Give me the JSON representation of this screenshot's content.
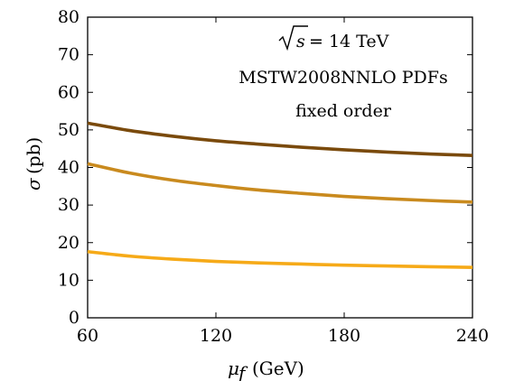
{
  "chart_data": {
    "type": "line",
    "xlabel_symbol": "μ",
    "xlabel_subscript": "f",
    "xlabel_unit": "(GeV)",
    "ylabel_symbol": "σ",
    "ylabel_unit": "(pb)",
    "xlim": [
      60,
      240
    ],
    "ylim": [
      0,
      80
    ],
    "xticks": [
      60,
      120,
      180,
      240
    ],
    "yticks": [
      0,
      10,
      20,
      30,
      40,
      50,
      60,
      70,
      80
    ],
    "annotations": {
      "energy_expr": "s",
      "energy_value": " = 14 TeV",
      "pdf": "MSTW2008NNLO PDFs",
      "order": "fixed order"
    },
    "x": [
      60,
      80,
      100,
      120,
      140,
      160,
      180,
      200,
      220,
      240
    ],
    "series": [
      {
        "color": "#7a4a0c",
        "values": [
          51.8,
          49.8,
          48.3,
          47.1,
          46.2,
          45.4,
          44.7,
          44.1,
          43.6,
          43.2
        ]
      },
      {
        "color": "#c98a1e",
        "values": [
          41.0,
          38.5,
          36.6,
          35.2,
          34.0,
          33.1,
          32.3,
          31.7,
          31.2,
          30.8
        ]
      },
      {
        "color": "#f6aa18",
        "values": [
          17.6,
          16.4,
          15.6,
          15.0,
          14.6,
          14.3,
          14.0,
          13.8,
          13.6,
          13.4
        ]
      }
    ]
  }
}
